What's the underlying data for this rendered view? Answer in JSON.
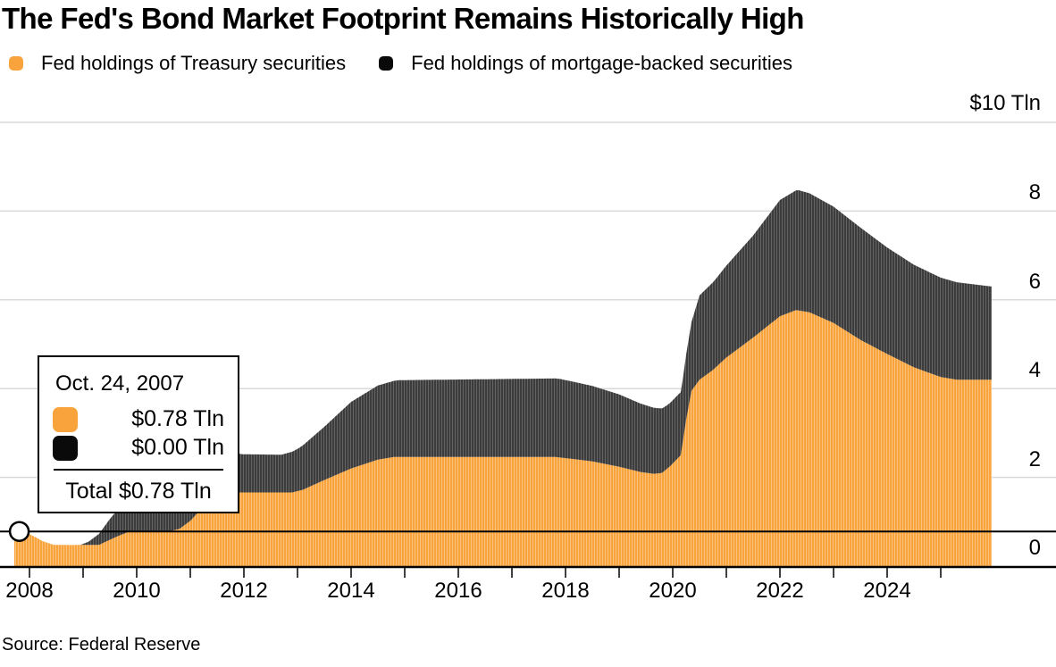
{
  "title": "The Fed's Bond Market Footprint Remains Historically High",
  "legend": [
    {
      "series": "treasury",
      "label": "Fed holdings of Treasury securities"
    },
    {
      "series": "mbs",
      "label": "Fed holdings of mortgage-backed securities"
    }
  ],
  "axis": {
    "y_unit_label": "$10 Tln",
    "y_ticks": [
      "8",
      "6",
      "4",
      "2",
      "0"
    ],
    "x_ticks": [
      "2008",
      "2010",
      "2012",
      "2014",
      "2016",
      "2018",
      "2020",
      "2022",
      "2024"
    ]
  },
  "tooltip": {
    "date": "Oct. 24, 2007",
    "rows": [
      {
        "series": "treasury",
        "value": "$0.78 Tln"
      },
      {
        "series": "mbs",
        "value": "$0.00 Tln"
      }
    ],
    "total": "Total $0.78 Tln"
  },
  "hover": {
    "date": "Oct. 24, 2007",
    "year": 2007.81,
    "total_tln": 0.78
  },
  "source": "Source: Federal Reserve",
  "colors": {
    "treasury": "#F8A33C",
    "treasury_stripe": "#FBC787",
    "mbs": "#3C3C3C",
    "mbs_stripe": "#6B6B6B",
    "legend_mbs": "#0A0A0A",
    "grid": "#D9D9D9",
    "axis": "#000000"
  },
  "chart_data": {
    "type": "area",
    "stacked": true,
    "title": "The Fed's Bond Market Footprint Remains Historically High",
    "ylabel": "$ Tln",
    "xlim": [
      2007.72,
      2025.95
    ],
    "ylim": [
      0,
      10
    ],
    "grid": true,
    "legend_position": "top",
    "series": [
      {
        "key": "treasury",
        "name": "Fed holdings of Treasury securities",
        "points": [
          [
            2007.72,
            0.78
          ],
          [
            2008.0,
            0.72
          ],
          [
            2008.1,
            0.66
          ],
          [
            2008.25,
            0.56
          ],
          [
            2008.45,
            0.48
          ],
          [
            2008.75,
            0.475
          ],
          [
            2009.3,
            0.48
          ],
          [
            2009.6,
            0.65
          ],
          [
            2009.85,
            0.775
          ],
          [
            2010.6,
            0.78
          ],
          [
            2010.8,
            0.84
          ],
          [
            2011.0,
            1.02
          ],
          [
            2011.2,
            1.28
          ],
          [
            2011.5,
            1.62
          ],
          [
            2011.75,
            1.66
          ],
          [
            2012.9,
            1.66
          ],
          [
            2013.1,
            1.72
          ],
          [
            2013.5,
            1.94
          ],
          [
            2014.0,
            2.2
          ],
          [
            2014.5,
            2.4
          ],
          [
            2014.8,
            2.46
          ],
          [
            2017.8,
            2.46
          ],
          [
            2018.1,
            2.42
          ],
          [
            2018.5,
            2.36
          ],
          [
            2019.0,
            2.24
          ],
          [
            2019.4,
            2.12
          ],
          [
            2019.65,
            2.08
          ],
          [
            2019.8,
            2.1
          ],
          [
            2019.95,
            2.25
          ],
          [
            2020.15,
            2.5
          ],
          [
            2020.25,
            3.3
          ],
          [
            2020.35,
            3.95
          ],
          [
            2020.5,
            4.2
          ],
          [
            2020.75,
            4.42
          ],
          [
            2021.0,
            4.7
          ],
          [
            2021.5,
            5.15
          ],
          [
            2022.0,
            5.63
          ],
          [
            2022.3,
            5.77
          ],
          [
            2022.55,
            5.72
          ],
          [
            2023.0,
            5.48
          ],
          [
            2023.5,
            5.1
          ],
          [
            2024.0,
            4.78
          ],
          [
            2024.5,
            4.48
          ],
          [
            2025.0,
            4.26
          ],
          [
            2025.3,
            4.2
          ],
          [
            2025.95,
            4.2
          ]
        ]
      },
      {
        "key": "mbs",
        "name": "Fed holdings of mortgage-backed securities",
        "points": [
          [
            2007.72,
            0.0
          ],
          [
            2008.95,
            0.0
          ],
          [
            2009.1,
            0.07
          ],
          [
            2009.3,
            0.25
          ],
          [
            2009.5,
            0.47
          ],
          [
            2009.75,
            0.69
          ],
          [
            2010.0,
            0.91
          ],
          [
            2010.3,
            1.09
          ],
          [
            2010.55,
            1.12
          ],
          [
            2010.8,
            1.07
          ],
          [
            2011.2,
            0.96
          ],
          [
            2011.7,
            0.89
          ],
          [
            2012.0,
            0.86
          ],
          [
            2012.7,
            0.85
          ],
          [
            2013.0,
            0.95
          ],
          [
            2013.5,
            1.2
          ],
          [
            2014.0,
            1.5
          ],
          [
            2014.5,
            1.67
          ],
          [
            2014.9,
            1.73
          ],
          [
            2017.9,
            1.77
          ],
          [
            2018.5,
            1.7
          ],
          [
            2019.0,
            1.63
          ],
          [
            2019.5,
            1.52
          ],
          [
            2019.9,
            1.43
          ],
          [
            2020.2,
            1.42
          ],
          [
            2020.35,
            1.55
          ],
          [
            2020.5,
            1.9
          ],
          [
            2020.8,
            1.99
          ],
          [
            2021.0,
            2.07
          ],
          [
            2021.5,
            2.3
          ],
          [
            2022.0,
            2.62
          ],
          [
            2022.35,
            2.71
          ],
          [
            2023.0,
            2.62
          ],
          [
            2023.5,
            2.53
          ],
          [
            2024.0,
            2.4
          ],
          [
            2024.5,
            2.31
          ],
          [
            2025.0,
            2.24
          ],
          [
            2025.95,
            2.1
          ]
        ]
      }
    ]
  }
}
